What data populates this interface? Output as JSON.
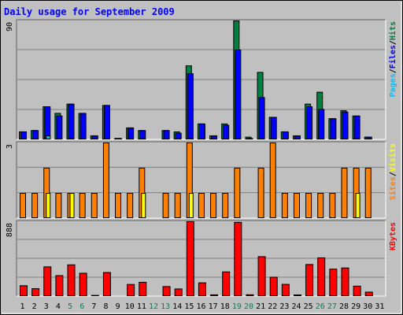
{
  "chart_data": [
    {
      "type": "bar",
      "title": "Daily usage for September 2009",
      "categories": [
        "1",
        "2",
        "3",
        "4",
        "5",
        "6",
        "7",
        "8",
        "9",
        "10",
        "11",
        "12",
        "13",
        "14",
        "15",
        "16",
        "17",
        "18",
        "19",
        "20",
        "21",
        "22",
        "23",
        "24",
        "25",
        "26",
        "27",
        "28",
        "29",
        "30",
        "31"
      ],
      "weekend_days": [
        "5",
        "6",
        "12",
        "13",
        "19",
        "20",
        "26",
        "27"
      ],
      "y_label_max": "90",
      "ylim": [
        0,
        90
      ],
      "series": [
        {
          "name": "Hits",
          "color": "#008040",
          "values": [
            6,
            7,
            25,
            20,
            27,
            20,
            3,
            26,
            1,
            9,
            7,
            0,
            7,
            6,
            56,
            12,
            3,
            12,
            90,
            2,
            51,
            17,
            6,
            3,
            27,
            36,
            16,
            22,
            18,
            2,
            0
          ]
        },
        {
          "name": "Files",
          "color": "#0000ff",
          "values": [
            6,
            7,
            25,
            18,
            27,
            20,
            3,
            26,
            1,
            9,
            7,
            0,
            7,
            5,
            50,
            12,
            3,
            11,
            68,
            1,
            32,
            17,
            6,
            3,
            25,
            23,
            16,
            21,
            18,
            2,
            0
          ]
        },
        {
          "name": "Pages",
          "color": "#00c0ff",
          "values": [
            0,
            0,
            3,
            0,
            1,
            0,
            0,
            0,
            0,
            0,
            1,
            0,
            0,
            0,
            1,
            0,
            0,
            0,
            0,
            0,
            0,
            0,
            0,
            0,
            0,
            0,
            0,
            0,
            1,
            0,
            0
          ]
        }
      ],
      "axis_legend": [
        {
          "text": "Pages",
          "color": "#00c0ff"
        },
        {
          "text": "/",
          "color": "#000000"
        },
        {
          "text": "Files",
          "color": "#0000ff"
        },
        {
          "text": "/",
          "color": "#000000"
        },
        {
          "text": "Hits",
          "color": "#008040"
        }
      ]
    },
    {
      "type": "bar",
      "y_label_max": "3",
      "ylim": [
        0,
        3
      ],
      "series": [
        {
          "name": "Visits",
          "color": "#ffff00",
          "values": [
            0,
            0,
            1,
            0,
            1,
            0,
            0,
            0,
            0,
            0,
            1,
            0,
            0,
            0,
            1,
            0,
            0,
            0,
            0,
            0,
            0,
            0,
            0,
            0,
            0,
            0,
            0,
            0,
            1,
            0,
            0
          ]
        },
        {
          "name": "Sites",
          "color": "#ff8000",
          "values": [
            1,
            1,
            2,
            1,
            1,
            1,
            1,
            3,
            1,
            1,
            2,
            0,
            1,
            1,
            3,
            1,
            1,
            1,
            2,
            0,
            2,
            3,
            1,
            1,
            1,
            1,
            1,
            2,
            2,
            2,
            0
          ]
        }
      ],
      "axis_legend": [
        {
          "text": "Sites",
          "color": "#ff8000"
        },
        {
          "text": "/",
          "color": "#000000"
        },
        {
          "text": "Visits",
          "color": "#ffff00"
        }
      ]
    },
    {
      "type": "bar",
      "y_label_max": "888",
      "ylim": [
        0,
        888
      ],
      "series": [
        {
          "name": "KBytes",
          "color": "#ff0000",
          "values": [
            128,
            93,
            352,
            248,
            376,
            276,
            13,
            285,
            7,
            143,
            169,
            0,
            118,
            90,
            888,
            162,
            20,
            292,
            880,
            21,
            473,
            229,
            144,
            19,
            380,
            459,
            325,
            339,
            123,
            52,
            0
          ]
        }
      ],
      "axis_legend": [
        {
          "text": "KBytes",
          "color": "#ff0000"
        }
      ]
    }
  ]
}
